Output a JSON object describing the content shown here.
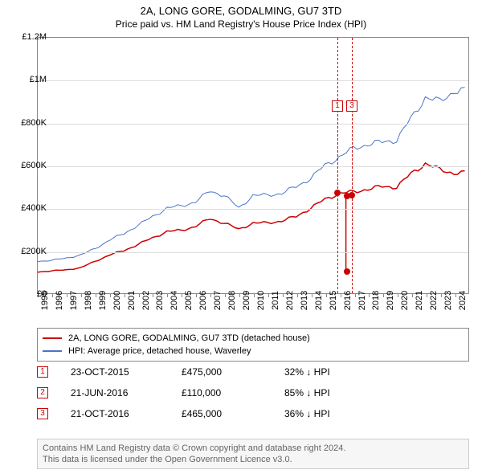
{
  "title": "2A, LONG GORE, GODALMING, GU7 3TD",
  "subtitle": "Price paid vs. HM Land Registry's House Price Index (HPI)",
  "chart": {
    "type": "line",
    "background_color": "#ffffff",
    "grid_color": "#dddddd",
    "border_color": "#888888",
    "x_years": [
      1995,
      1996,
      1997,
      1998,
      1999,
      2000,
      2001,
      2002,
      2003,
      2004,
      2005,
      2006,
      2007,
      2008,
      2009,
      2010,
      2011,
      2012,
      2013,
      2014,
      2015,
      2016,
      2017,
      2018,
      2019,
      2020,
      2021,
      2022,
      2023,
      2024
    ],
    "x_min": 1995,
    "x_max": 2025,
    "ylim": [
      0,
      1200000
    ],
    "yticks": [
      0,
      200000,
      400000,
      600000,
      800000,
      1000000,
      1200000
    ],
    "ytick_labels": [
      "£0",
      "£200K",
      "£400K",
      "£600K",
      "£800K",
      "£1M",
      "£1.2M"
    ],
    "label_fontsize": 11,
    "series": {
      "hpi": {
        "label": "HPI: Average price, detached house, Waverley",
        "color": "#4a74c9",
        "line_width": 1,
        "values": [
          150000,
          155000,
          165000,
          180000,
          210000,
          250000,
          280000,
          320000,
          360000,
          400000,
          410000,
          430000,
          480000,
          460000,
          400000,
          460000,
          460000,
          470000,
          500000,
          540000,
          600000,
          640000,
          680000,
          700000,
          710000,
          720000,
          820000,
          920000,
          900000,
          950000
        ]
      },
      "property": {
        "label": "2A, LONG GORE, GODALMING, GU7 3TD (detached house)",
        "color": "#cc0000",
        "line_width": 1.5,
        "values": [
          100000,
          105000,
          110000,
          120000,
          150000,
          180000,
          200000,
          230000,
          260000,
          290000,
          295000,
          315000,
          350000,
          330000,
          300000,
          330000,
          330000,
          340000,
          360000,
          400000,
          440000,
          470000,
          475000,
          490000,
          500000,
          500000,
          560000,
          610000,
          580000,
          565000
        ]
      }
    },
    "event_markers": [
      {
        "n": "1",
        "year": 2015.8,
        "label_y": 880000
      },
      {
        "n": "3",
        "year": 2016.8,
        "label_y": 880000
      }
    ],
    "sale_dots": [
      {
        "year": 2015.8,
        "price": 475000
      },
      {
        "year": 2016.47,
        "price": 110000
      },
      {
        "year": 2016.47,
        "price": 460000
      },
      {
        "year": 2016.8,
        "price": 465000
      }
    ]
  },
  "legend": {
    "items": [
      {
        "color": "#cc0000",
        "label_ref": "chart.series.property.label"
      },
      {
        "color": "#4a74c9",
        "label_ref": "chart.series.hpi.label"
      }
    ]
  },
  "sales": [
    {
      "n": "1",
      "date": "23-OCT-2015",
      "price": "£475,000",
      "delta": "32% ↓ HPI"
    },
    {
      "n": "2",
      "date": "21-JUN-2016",
      "price": "£110,000",
      "delta": "85% ↓ HPI"
    },
    {
      "n": "3",
      "date": "21-OCT-2016",
      "price": "£465,000",
      "delta": "36% ↓ HPI"
    }
  ],
  "footer": {
    "line1": "Contains HM Land Registry data © Crown copyright and database right 2024.",
    "line2": "This data is licensed under the Open Government Licence v3.0."
  }
}
